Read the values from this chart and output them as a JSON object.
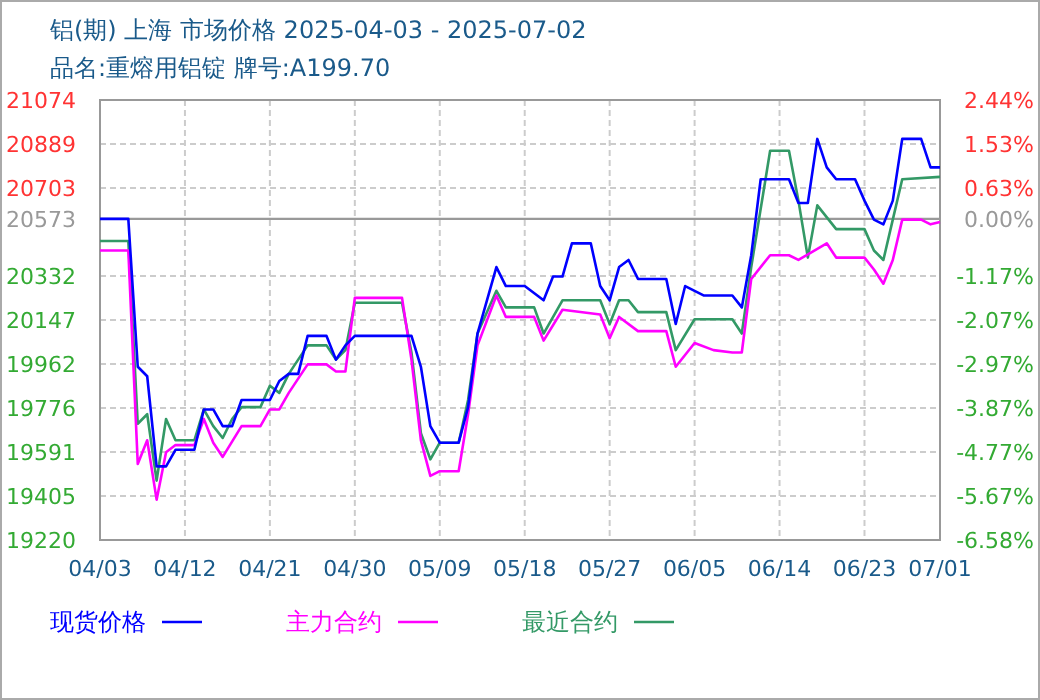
{
  "chart_data": {
    "type": "line",
    "title": "铝(期) 上海 市场价格 2025-04-03 - 2025-07-02",
    "subtitle": "品名:重熔用铝锭 牌号:A199.70",
    "xlim": [
      "2025-04-03",
      "2025-07-01"
    ],
    "xticks": [
      {
        "value": "2025-04-03",
        "label": "04/03"
      },
      {
        "value": "2025-04-12",
        "label": "04/12"
      },
      {
        "value": "2025-04-21",
        "label": "04/21"
      },
      {
        "value": "2025-04-30",
        "label": "04/30"
      },
      {
        "value": "2025-05-09",
        "label": "05/09"
      },
      {
        "value": "2025-05-18",
        "label": "05/18"
      },
      {
        "value": "2025-05-27",
        "label": "05/27"
      },
      {
        "value": "2025-06-05",
        "label": "06/05"
      },
      {
        "value": "2025-06-14",
        "label": "06/14"
      },
      {
        "value": "2025-06-23",
        "label": "06/23"
      },
      {
        "value": "2025-07-01",
        "label": "07/01"
      }
    ],
    "ylim": [
      19220,
      21074
    ],
    "yticks": [
      19220,
      19405,
      19591,
      19776,
      19962,
      20147,
      20332,
      20573,
      20703,
      20889,
      21074
    ],
    "y2lim": [
      -6.58,
      2.44
    ],
    "y2ticks": [
      {
        "value": -6.58,
        "label": "-6.58%"
      },
      {
        "value": -5.67,
        "label": "-5.67%"
      },
      {
        "value": -4.77,
        "label": "-4.77%"
      },
      {
        "value": -3.87,
        "label": "-3.87%"
      },
      {
        "value": -2.97,
        "label": "-2.97%"
      },
      {
        "value": -2.07,
        "label": "-2.07%"
      },
      {
        "value": -1.17,
        "label": "-1.17%"
      },
      {
        "value": 0,
        "label": "0.00%"
      },
      {
        "value": 0.63,
        "label": "0.63%"
      },
      {
        "value": 1.53,
        "label": "1.53%"
      },
      {
        "value": 2.44,
        "label": "2.44%"
      }
    ],
    "grid": true,
    "legend": "bottom",
    "ref_lines": [
      {
        "axis": "y",
        "value": 20573,
        "color": "#999999"
      }
    ],
    "series": [
      {
        "name": "现货价格",
        "color": "#0000ff",
        "x": [
          "2025-04-03",
          "2025-04-06",
          "2025-04-07",
          "2025-04-08",
          "2025-04-09",
          "2025-04-10",
          "2025-04-11",
          "2025-04-13",
          "2025-04-14",
          "2025-04-15",
          "2025-04-16",
          "2025-04-17",
          "2025-04-18",
          "2025-04-21",
          "2025-04-22",
          "2025-04-23",
          "2025-04-24",
          "2025-04-25",
          "2025-04-27",
          "2025-04-28",
          "2025-04-29",
          "2025-04-30",
          "2025-05-06",
          "2025-05-07",
          "2025-05-08",
          "2025-05-09",
          "2025-05-11",
          "2025-05-12",
          "2025-05-13",
          "2025-05-15",
          "2025-05-16",
          "2025-05-18",
          "2025-05-20",
          "2025-05-21",
          "2025-05-22",
          "2025-05-23",
          "2025-05-25",
          "2025-05-26",
          "2025-05-27",
          "2025-05-28",
          "2025-05-29",
          "2025-05-30",
          "2025-06-02",
          "2025-06-03",
          "2025-06-04",
          "2025-06-06",
          "2025-06-09",
          "2025-06-10",
          "2025-06-11",
          "2025-06-12",
          "2025-06-13",
          "2025-06-15",
          "2025-06-16",
          "2025-06-17",
          "2025-06-18",
          "2025-06-19",
          "2025-06-20",
          "2025-06-22",
          "2025-06-23",
          "2025-06-24",
          "2025-06-25",
          "2025-06-26",
          "2025-06-27",
          "2025-06-29",
          "2025-06-30",
          "2025-07-01"
        ],
        "values": [
          20573,
          20573,
          19950,
          19910,
          19530,
          19530,
          19600,
          19600,
          19770,
          19770,
          19700,
          19700,
          19810,
          19810,
          19890,
          19920,
          19920,
          20080,
          20080,
          19980,
          20040,
          20080,
          20080,
          19950,
          19700,
          19630,
          19630,
          19780,
          20090,
          20370,
          20290,
          20290,
          20230,
          20330,
          20330,
          20470,
          20470,
          20290,
          20230,
          20370,
          20400,
          20320,
          20320,
          20130,
          20290,
          20250,
          20250,
          20200,
          20420,
          20740,
          20740,
          20740,
          20640,
          20640,
          20910,
          20790,
          20740,
          20740,
          20650,
          20570,
          20550,
          20650,
          20910,
          20910,
          20790,
          20790
        ]
      },
      {
        "name": "主力合约",
        "color": "#ff00ff",
        "x": [
          "2025-04-03",
          "2025-04-06",
          "2025-04-07",
          "2025-04-08",
          "2025-04-09",
          "2025-04-10",
          "2025-04-11",
          "2025-04-13",
          "2025-04-14",
          "2025-04-15",
          "2025-04-16",
          "2025-04-18",
          "2025-04-20",
          "2025-04-21",
          "2025-04-22",
          "2025-04-23",
          "2025-04-25",
          "2025-04-27",
          "2025-04-28",
          "2025-04-29",
          "2025-04-30",
          "2025-05-05",
          "2025-05-06",
          "2025-05-07",
          "2025-05-08",
          "2025-05-09",
          "2025-05-11",
          "2025-05-12",
          "2025-05-13",
          "2025-05-15",
          "2025-05-16",
          "2025-05-19",
          "2025-05-20",
          "2025-05-22",
          "2025-05-26",
          "2025-05-27",
          "2025-05-28",
          "2025-05-30",
          "2025-06-02",
          "2025-06-03",
          "2025-06-05",
          "2025-06-07",
          "2025-06-09",
          "2025-06-10",
          "2025-06-11",
          "2025-06-13",
          "2025-06-15",
          "2025-06-16",
          "2025-06-19",
          "2025-06-20",
          "2025-06-23",
          "2025-06-24",
          "2025-06-25",
          "2025-06-26",
          "2025-06-27",
          "2025-06-29",
          "2025-06-30",
          "2025-07-01"
        ],
        "values": [
          20440,
          20440,
          19540,
          19640,
          19390,
          19590,
          19620,
          19620,
          19730,
          19630,
          19570,
          19700,
          19700,
          19770,
          19770,
          19840,
          19960,
          19960,
          19930,
          19930,
          20240,
          20240,
          19980,
          19640,
          19490,
          19510,
          19510,
          19750,
          20040,
          20250,
          20160,
          20160,
          20060,
          20190,
          20170,
          20070,
          20160,
          20100,
          20100,
          19950,
          20050,
          20020,
          20010,
          20010,
          20320,
          20420,
          20420,
          20400,
          20470,
          20410,
          20410,
          20360,
          20300,
          20400,
          20570,
          20570,
          20550,
          20560
        ]
      },
      {
        "name": "最近合约",
        "color": "#339966",
        "x": [
          "2025-04-03",
          "2025-04-06",
          "2025-04-07",
          "2025-04-08",
          "2025-04-09",
          "2025-04-10",
          "2025-04-11",
          "2025-04-13",
          "2025-04-14",
          "2025-04-15",
          "2025-04-16",
          "2025-04-17",
          "2025-04-18",
          "2025-04-20",
          "2025-04-21",
          "2025-04-22",
          "2025-04-23",
          "2025-04-24",
          "2025-04-25",
          "2025-04-27",
          "2025-04-28",
          "2025-04-29",
          "2025-04-30",
          "2025-05-05",
          "2025-05-06",
          "2025-05-07",
          "2025-05-08",
          "2025-05-09",
          "2025-05-11",
          "2025-05-12",
          "2025-05-13",
          "2025-05-15",
          "2025-05-16",
          "2025-05-19",
          "2025-05-20",
          "2025-05-22",
          "2025-05-26",
          "2025-05-27",
          "2025-05-28",
          "2025-05-29",
          "2025-05-30",
          "2025-06-02",
          "2025-06-03",
          "2025-06-05",
          "2025-06-09",
          "2025-06-10",
          "2025-06-11",
          "2025-06-13",
          "2025-06-15",
          "2025-06-16",
          "2025-06-17",
          "2025-06-18",
          "2025-06-20",
          "2025-06-23",
          "2025-06-24",
          "2025-06-25",
          "2025-06-26",
          "2025-06-27",
          "2025-07-01"
        ],
        "values": [
          20480,
          20480,
          19710,
          19750,
          19470,
          19730,
          19640,
          19640,
          19770,
          19700,
          19650,
          19730,
          19780,
          19780,
          19870,
          19840,
          19920,
          19980,
          20040,
          20040,
          19980,
          20020,
          20220,
          20220,
          20010,
          19670,
          19560,
          19630,
          19630,
          19810,
          20090,
          20270,
          20200,
          20200,
          20090,
          20230,
          20230,
          20130,
          20230,
          20230,
          20180,
          20180,
          20020,
          20150,
          20150,
          20090,
          20370,
          20860,
          20860,
          20650,
          20410,
          20630,
          20530,
          20530,
          20440,
          20400,
          20570,
          20740,
          20750
        ]
      }
    ]
  }
}
